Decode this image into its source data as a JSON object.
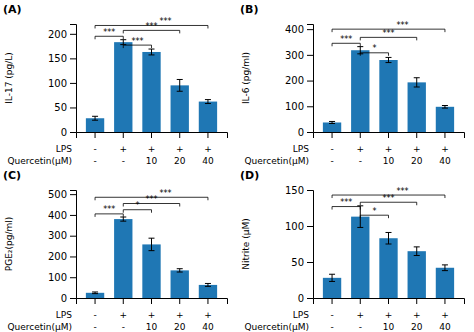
{
  "chart_data": [
    {
      "type": "bar",
      "title": "(A)",
      "ylabel": "IL-17 (pg/L)",
      "categories": [
        null,
        null,
        null,
        null,
        null
      ],
      "values": [
        28,
        183,
        163,
        95,
        62
      ],
      "errors": [
        4,
        5,
        6,
        12,
        4
      ],
      "ylim": [
        0,
        220
      ],
      "yticks": [
        0,
        50,
        100,
        150,
        200
      ],
      "grid": false,
      "row_labels": [
        {
          "name": "LPS",
          "labels": [
            "-",
            "+",
            "+",
            "+",
            "+"
          ]
        },
        {
          "name": "Quercetin(μM)",
          "labels": [
            "-",
            "-",
            "10",
            "20",
            "40"
          ]
        }
      ],
      "significance": [
        {
          "x1": 0,
          "x2": 1,
          "y": 195,
          "label": "***"
        },
        {
          "x1": 1,
          "x2": 2,
          "y": 177,
          "label": "***"
        },
        {
          "x1": 1,
          "x2": 3,
          "y": 207,
          "label": "***"
        },
        {
          "x1": 0,
          "x2": 4,
          "y": 217,
          "label": "***"
        }
      ]
    },
    {
      "type": "bar",
      "title": "(B)",
      "ylabel": "IL-6 (pg/ml)",
      "categories": [
        null,
        null,
        null,
        null,
        null
      ],
      "values": [
        37,
        318,
        280,
        193,
        98
      ],
      "errors": [
        4,
        14,
        10,
        18,
        5
      ],
      "ylim": [
        0,
        420
      ],
      "yticks": [
        0,
        100,
        200,
        300,
        400
      ],
      "grid": false,
      "row_labels": [
        {
          "name": "LPS",
          "labels": [
            "-",
            "+",
            "+",
            "+",
            "+"
          ]
        },
        {
          "name": "Quercetin(μM)",
          "labels": [
            "-",
            "-",
            "10",
            "20",
            "40"
          ]
        }
      ],
      "significance": [
        {
          "x1": 0,
          "x2": 1,
          "y": 345,
          "label": "***"
        },
        {
          "x1": 1,
          "x2": 2,
          "y": 308,
          "label": "*"
        },
        {
          "x1": 1,
          "x2": 3,
          "y": 368,
          "label": "***"
        },
        {
          "x1": 0,
          "x2": 4,
          "y": 400,
          "label": "***"
        }
      ]
    },
    {
      "type": "bar",
      "title": "(C)",
      "ylabel": "PGE₂(pg/ml)",
      "categories": [
        null,
        null,
        null,
        null,
        null
      ],
      "values": [
        25,
        380,
        258,
        133,
        63
      ],
      "errors": [
        4,
        10,
        30,
        8,
        7
      ],
      "ylim": [
        0,
        520
      ],
      "yticks": [
        0,
        100,
        200,
        300,
        400,
        500
      ],
      "grid": false,
      "row_labels": [
        {
          "name": "LPS",
          "labels": [
            "-",
            "+",
            "+",
            "+",
            "+"
          ]
        },
        {
          "name": "Quercetin(μM)",
          "labels": [
            "-",
            "-",
            "10",
            "20",
            "40"
          ]
        }
      ],
      "significance": [
        {
          "x1": 0,
          "x2": 1,
          "y": 405,
          "label": "***"
        },
        {
          "x1": 1,
          "x2": 2,
          "y": 425,
          "label": "*"
        },
        {
          "x1": 1,
          "x2": 3,
          "y": 455,
          "label": "***"
        },
        {
          "x1": 0,
          "x2": 4,
          "y": 485,
          "label": "***"
        }
      ]
    },
    {
      "type": "bar",
      "title": "(D)",
      "ylabel": "Nitrite (μM)",
      "categories": [
        null,
        null,
        null,
        null,
        null
      ],
      "values": [
        28,
        113,
        83,
        65,
        42
      ],
      "errors": [
        5,
        15,
        8,
        6,
        4
      ],
      "ylim": [
        0,
        150
      ],
      "yticks": [
        0,
        50,
        100,
        150
      ],
      "grid": false,
      "row_labels": [
        {
          "name": "LPS",
          "labels": [
            "-",
            "+",
            "+",
            "+",
            "+"
          ]
        },
        {
          "name": "Quercetin(μM)",
          "labels": [
            "-",
            "-",
            "10",
            "20",
            "40"
          ]
        }
      ],
      "significance": [
        {
          "x1": 0,
          "x2": 1,
          "y": 127,
          "label": "***"
        },
        {
          "x1": 1,
          "x2": 2,
          "y": 115,
          "label": "*"
        },
        {
          "x1": 1,
          "x2": 3,
          "y": 133,
          "label": "***"
        },
        {
          "x1": 0,
          "x2": 4,
          "y": 143,
          "label": "***"
        }
      ]
    }
  ]
}
